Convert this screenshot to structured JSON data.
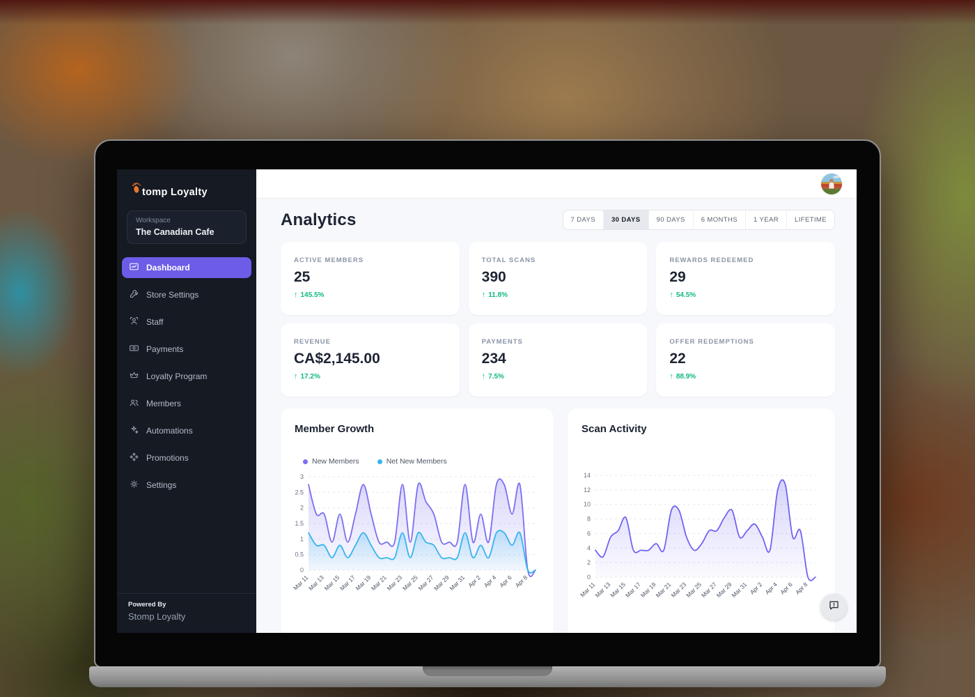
{
  "brand": {
    "name": "Stomp Loyalty"
  },
  "sidebar": {
    "workspace": {
      "label": "Workspace",
      "name": "The Canadian Cafe"
    },
    "nav": [
      {
        "label": "Dashboard",
        "icon": "dashboard-icon",
        "active": true
      },
      {
        "label": "Store Settings",
        "icon": "store-settings-icon",
        "active": false
      },
      {
        "label": "Staff",
        "icon": "staff-icon",
        "active": false
      },
      {
        "label": "Payments",
        "icon": "payments-icon",
        "active": false
      },
      {
        "label": "Loyalty Program",
        "icon": "loyalty-program-icon",
        "active": false
      },
      {
        "label": "Members",
        "icon": "members-icon",
        "active": false
      },
      {
        "label": "Automations",
        "icon": "automations-icon",
        "active": false
      },
      {
        "label": "Promotions",
        "icon": "promotions-icon",
        "active": false
      },
      {
        "label": "Settings",
        "icon": "settings-icon",
        "active": false
      }
    ],
    "footer": {
      "powered_by": "Powered By",
      "brand": "Stomp Loyalty"
    }
  },
  "header": {
    "title": "Analytics"
  },
  "time_ranges": {
    "options": [
      "7 DAYS",
      "30 DAYS",
      "90 DAYS",
      "6 MONTHS",
      "1 YEAR",
      "LIFETIME"
    ],
    "selected": "30 DAYS"
  },
  "stats": [
    {
      "label": "ACTIVE MEMBERS",
      "value": "25",
      "delta": "145.5%",
      "direction": "up"
    },
    {
      "label": "TOTAL SCANS",
      "value": "390",
      "delta": "11.8%",
      "direction": "up"
    },
    {
      "label": "REWARDS REDEEMED",
      "value": "29",
      "delta": "54.5%",
      "direction": "up"
    },
    {
      "label": "REVENUE",
      "value": "CA$2,145.00",
      "delta": "17.2%",
      "direction": "up"
    },
    {
      "label": "PAYMENTS",
      "value": "234",
      "delta": "7.5%",
      "direction": "up"
    },
    {
      "label": "OFFER REDEMPTIONS",
      "value": "22",
      "delta": "88.9%",
      "direction": "up"
    }
  ],
  "colors": {
    "accent": "#6c5ce7",
    "positive": "#10b981",
    "sidebar_bg": "#151a23",
    "logo_orange": "#e8772e",
    "new_members_line": "#7b6ff0",
    "net_new_members_line": "#35b5ef",
    "scan_line": "#6f64f1"
  },
  "chart_data": [
    {
      "type": "line",
      "title": "Member Growth",
      "x": [
        "Mar 11",
        "Mar 12",
        "Mar 13",
        "Mar 14",
        "Mar 15",
        "Mar 16",
        "Mar 17",
        "Mar 18",
        "Mar 19",
        "Mar 20",
        "Mar 21",
        "Mar 22",
        "Mar 23",
        "Mar 24",
        "Mar 25",
        "Mar 26",
        "Mar 27",
        "Mar 28",
        "Mar 29",
        "Mar 30",
        "Mar 31",
        "Apr 1",
        "Apr 2",
        "Apr 3",
        "Apr 4",
        "Apr 5",
        "Apr 6",
        "Apr 7",
        "Apr 8",
        "Apr 9"
      ],
      "x_label_every": 2,
      "ylim": [
        0,
        3
      ],
      "yticks": [
        0,
        0.5,
        1,
        1.5,
        2,
        2.5,
        3
      ],
      "grid": "dashed-horizontal",
      "legend_position": "top-left",
      "series": [
        {
          "name": "New Members",
          "color": "#7b6ff0",
          "values": [
            2.75,
            1.8,
            1.8,
            0.9,
            1.8,
            0.9,
            1.8,
            2.75,
            1.8,
            0.9,
            0.9,
            0.9,
            2.75,
            0.9,
            2.75,
            2.2,
            1.8,
            0.9,
            0.9,
            0.9,
            2.75,
            0.9,
            1.8,
            0.9,
            2.75,
            2.75,
            1.8,
            2.75,
            0,
            0
          ]
        },
        {
          "name": "Net New Members",
          "color": "#35b5ef",
          "values": [
            1.2,
            0.8,
            0.8,
            0.4,
            0.8,
            0.4,
            0.8,
            1.2,
            0.8,
            0.4,
            0.4,
            0.4,
            1.2,
            0.4,
            1.2,
            0.9,
            0.8,
            0.4,
            0.4,
            0.4,
            1.2,
            0.4,
            0.8,
            0.4,
            1.2,
            1.2,
            0.8,
            1.2,
            0,
            0
          ]
        }
      ]
    },
    {
      "type": "line",
      "title": "Scan Activity",
      "x": [
        "Mar 11",
        "Mar 12",
        "Mar 13",
        "Mar 14",
        "Mar 15",
        "Mar 16",
        "Mar 17",
        "Mar 18",
        "Mar 19",
        "Mar 20",
        "Mar 21",
        "Mar 22",
        "Mar 23",
        "Mar 24",
        "Mar 25",
        "Mar 26",
        "Mar 27",
        "Mar 28",
        "Mar 29",
        "Mar 30",
        "Mar 31",
        "Apr 1",
        "Apr 2",
        "Apr 3",
        "Apr 4",
        "Apr 5",
        "Apr 6",
        "Apr 7",
        "Apr 8",
        "Apr 9"
      ],
      "x_label_every": 2,
      "ylim": [
        0,
        14
      ],
      "yticks": [
        0,
        2,
        4,
        6,
        8,
        10,
        12,
        14
      ],
      "grid": "dashed-horizontal",
      "legend_position": "none",
      "series": [
        {
          "name": "Scans",
          "color": "#6f64f1",
          "values": [
            3.7,
            2.8,
            5.5,
            6.4,
            8.2,
            3.7,
            3.7,
            3.7,
            4.6,
            3.7,
            9.2,
            9.2,
            5.5,
            3.7,
            4.6,
            6.4,
            6.4,
            8.2,
            9.2,
            5.5,
            6.4,
            7.3,
            5.5,
            3.7,
            11.9,
            12.8,
            5.5,
            6.4,
            0,
            0
          ]
        }
      ]
    }
  ]
}
